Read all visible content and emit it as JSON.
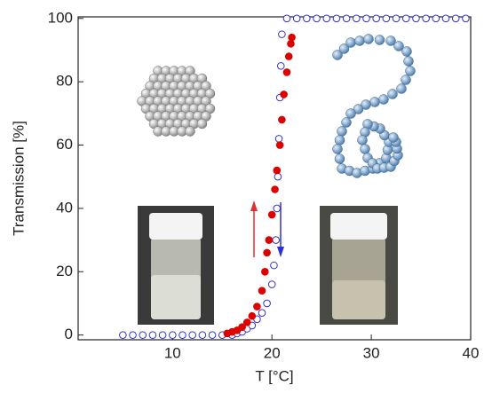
{
  "chart_data": {
    "type": "scatter",
    "x_label": "T [°C]",
    "y_label": "Transmission [%]",
    "xlim": [
      0.5,
      40
    ],
    "ylim": [
      -1.5,
      100.5
    ],
    "xticks": [
      10,
      20,
      30,
      40
    ],
    "yticks": [
      0,
      20,
      40,
      60,
      80,
      100
    ],
    "series": [
      {
        "color": "#3333cc",
        "marker": "open",
        "x": [
          5,
          6,
          7,
          8,
          9,
          10,
          11,
          12,
          13,
          14,
          15,
          16,
          16.5,
          17,
          17.5,
          18,
          18.5,
          19,
          19.5,
          20,
          20.2,
          20.4,
          20.5,
          20.6,
          20.7,
          20.8,
          20.9,
          21,
          21.5,
          22.5,
          23.5,
          24.5,
          25.5,
          26.5,
          27.5,
          28.5,
          29.5,
          30.5,
          31.5,
          32.5,
          33.5,
          34.5,
          35.5,
          36.5,
          37.5,
          38.5,
          39.5
        ],
        "values": [
          0,
          0,
          0,
          0,
          0,
          0,
          0,
          0,
          0,
          0,
          0,
          0,
          0.5,
          1,
          2,
          3,
          5,
          7,
          10,
          16,
          22,
          30,
          40,
          50,
          62,
          75,
          85,
          95,
          100,
          100,
          100,
          100,
          100,
          100,
          100,
          100,
          100,
          100,
          100,
          100,
          100,
          100,
          100,
          100,
          100,
          100,
          100
        ]
      },
      {
        "color": "#dd0000",
        "marker": "filled",
        "x": [
          15.5,
          16,
          16.5,
          17,
          17.5,
          18,
          18.5,
          19,
          19.3,
          19.5,
          19.7,
          20,
          20.3,
          20.5,
          20.8,
          21,
          21.2,
          21.5,
          21.7,
          21.9,
          22
        ],
        "values": [
          0.5,
          1,
          1.5,
          2.5,
          4,
          6,
          9,
          14,
          20,
          26,
          30,
          38,
          46,
          52,
          60,
          68,
          76,
          83,
          88,
          92,
          94
        ]
      }
    ]
  }
}
